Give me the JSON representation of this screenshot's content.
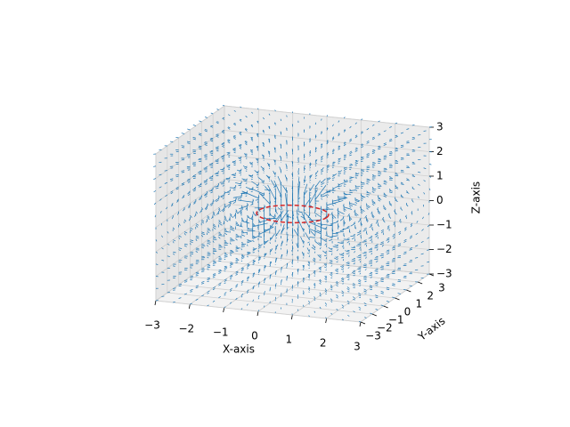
{
  "chart_data": {
    "type": "quiver3d",
    "xlabel": "X-axis",
    "ylabel": "Y-axis",
    "zlabel": "Z-axis",
    "xlim": [
      -3,
      3
    ],
    "ylim": [
      -3,
      3
    ],
    "zlim": [
      -3,
      3
    ],
    "xticks": [
      {
        "value": -3,
        "label": "−3"
      },
      {
        "value": -2,
        "label": "−2"
      },
      {
        "value": -1,
        "label": "−1"
      },
      0,
      1,
      2,
      3
    ],
    "yticks": [
      {
        "value": -3,
        "label": "−3"
      },
      {
        "value": -2,
        "label": "−2"
      },
      {
        "value": -1,
        "label": "−1"
      },
      0,
      1,
      2,
      3
    ],
    "zticks": [
      {
        "value": -3,
        "label": "−3"
      },
      {
        "value": -2,
        "label": "−2"
      },
      {
        "value": -1,
        "label": "−1"
      },
      0,
      1,
      2,
      3
    ],
    "color": "#1f77b4",
    "loop_color": "#d62728",
    "grid": true
  }
}
